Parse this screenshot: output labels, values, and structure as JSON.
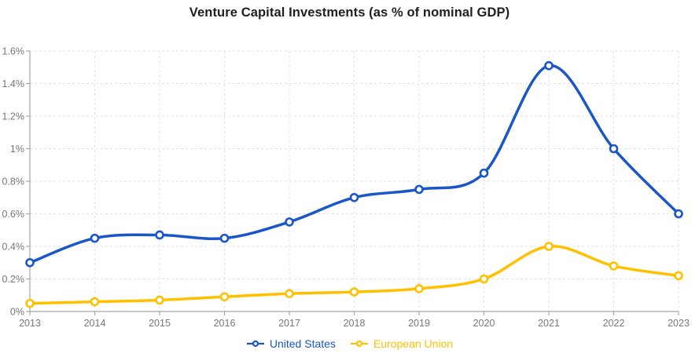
{
  "title": "Venture Capital Investments (as % of nominal GDP)",
  "chart_data": {
    "type": "line",
    "x": [
      "2013",
      "2014",
      "2015",
      "2016",
      "2017",
      "2018",
      "2019",
      "2020",
      "2021",
      "2022",
      "2023"
    ],
    "series": [
      {
        "name": "United States",
        "color": "#1A56C8",
        "values": [
          0.3,
          0.45,
          0.47,
          0.45,
          0.55,
          0.7,
          0.75,
          0.85,
          1.51,
          1.0,
          0.6
        ]
      },
      {
        "name": "European Union",
        "color": "#FFC000",
        "values": [
          0.05,
          0.06,
          0.07,
          0.09,
          0.11,
          0.12,
          0.14,
          0.2,
          0.4,
          0.28,
          0.22
        ]
      }
    ],
    "title": "Venture Capital Investments (as % of nominal GDP)",
    "xlabel": "",
    "ylabel": "",
    "ylim": [
      0,
      1.6
    ],
    "ytick_step": 0.2,
    "ytick_labels": [
      "0%",
      "0.2%",
      "0.4%",
      "0.6%",
      "0.8%",
      "1%",
      "1.2%",
      "1.4%",
      "1.6%"
    ],
    "grid": "dashed horizontal and vertical",
    "legend_position": "bottom-center"
  },
  "style_colors": {
    "gridline": "#E2E2E2",
    "axis": "#A6A6A6",
    "tick_text": "#777777",
    "marker_fill": "#FFFFFF"
  }
}
